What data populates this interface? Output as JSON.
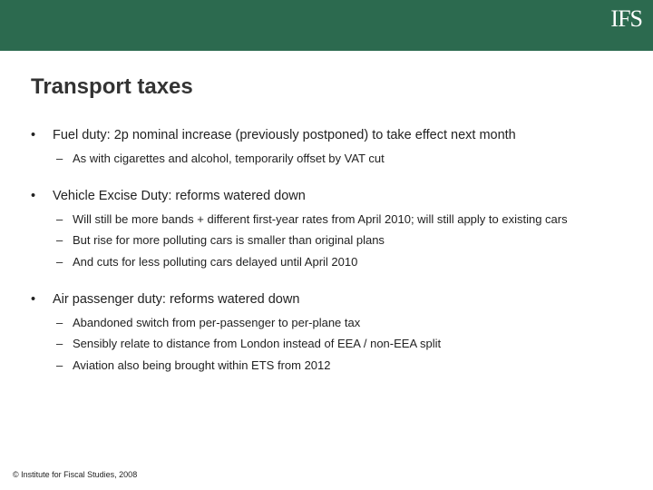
{
  "colors": {
    "header_bg": "#2c6a4f",
    "header_text": "#ffffff",
    "body_text": "#222222",
    "background": "#ffffff"
  },
  "typography": {
    "title_fontsize": 24,
    "bullet_fontsize": 14.5,
    "sub_fontsize": 13,
    "footer_fontsize": 9,
    "title_weight": "bold",
    "font_family": "Arial"
  },
  "logo": {
    "text": "IFS"
  },
  "title": "Transport taxes",
  "sections": [
    {
      "main": "Fuel duty: 2p nominal increase (previously postponed) to take effect next month",
      "subs": [
        "As with cigarettes and alcohol, temporarily offset by VAT cut"
      ]
    },
    {
      "main": "Vehicle Excise Duty: reforms watered down",
      "subs": [
        "Will still be more bands + different first-year rates from April 2010; will still apply to existing cars",
        "But rise for more polluting cars is smaller than original plans",
        "And cuts for less polluting cars delayed until April 2010"
      ]
    },
    {
      "main": "Air passenger duty: reforms watered down",
      "subs": [
        "Abandoned switch from per-passenger to per-plane tax",
        "Sensibly relate to distance from London instead of EEA / non-EEA split",
        "Aviation also being brought within ETS from 2012"
      ]
    }
  ],
  "footer": "© Institute for Fiscal Studies, 2008"
}
